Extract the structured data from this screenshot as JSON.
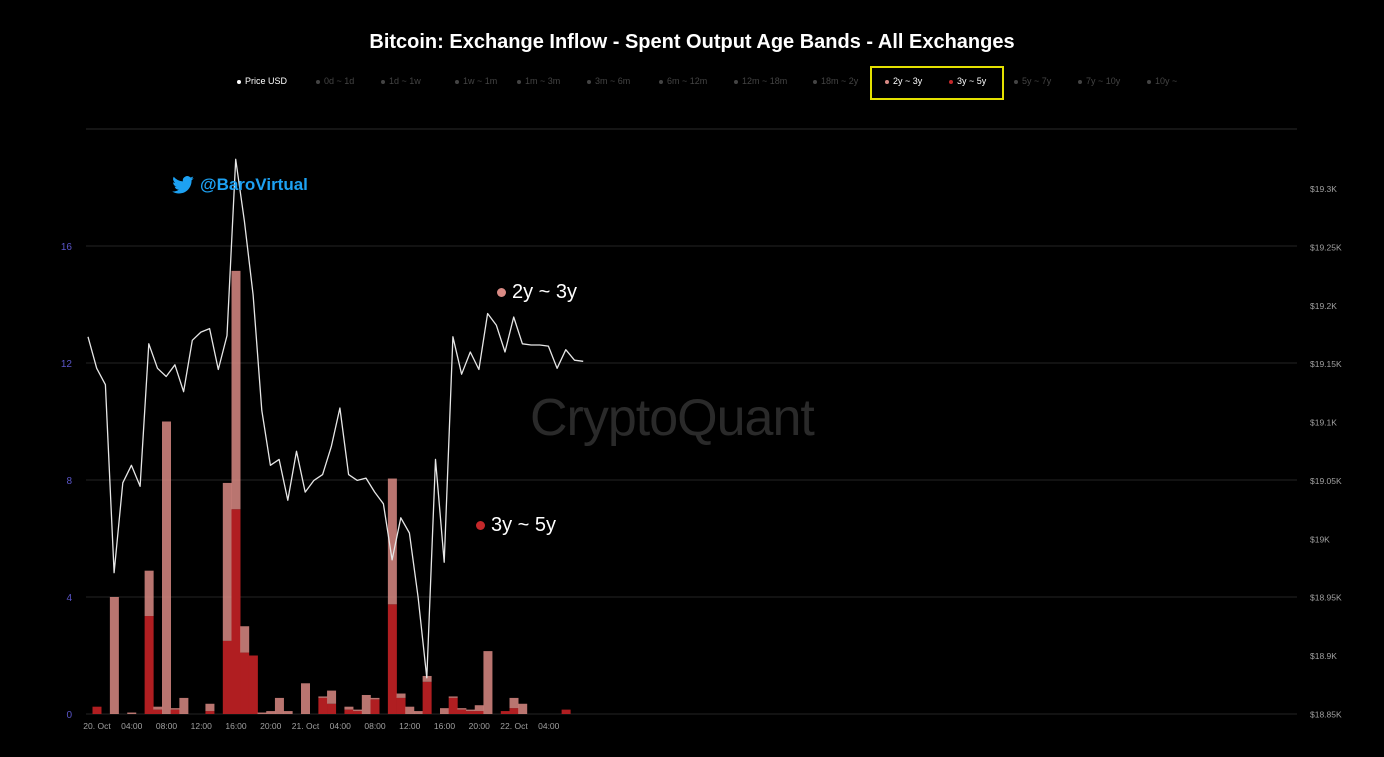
{
  "title": "Bitcoin: Exchange Inflow - Spent Output Age Bands - All Exchanges",
  "watermark": "CryptoQuant",
  "twitter_handle": "@BaroVirtual",
  "annotations": {
    "band_2y_3y": "2y ~ 3y",
    "band_3y_5y": "3y ~ 5y"
  },
  "legend": [
    {
      "label": "Price USD",
      "active": true,
      "color": "#ffffff"
    },
    {
      "label": "0d ~ 1d",
      "active": false,
      "color": "#444444"
    },
    {
      "label": "1d ~ 1w",
      "active": false,
      "color": "#444444"
    },
    {
      "label": "1w ~ 1m",
      "active": false,
      "color": "#444444"
    },
    {
      "label": "1m ~ 3m",
      "active": false,
      "color": "#444444"
    },
    {
      "label": "3m ~ 6m",
      "active": false,
      "color": "#444444"
    },
    {
      "label": "6m ~ 12m",
      "active": false,
      "color": "#444444"
    },
    {
      "label": "12m ~ 18m",
      "active": false,
      "color": "#444444"
    },
    {
      "label": "18m ~ 2y",
      "active": false,
      "color": "#444444"
    },
    {
      "label": "2y ~ 3y",
      "active": true,
      "color": "#d98a84"
    },
    {
      "label": "3y ~ 5y",
      "active": true,
      "color": "#c4282a"
    },
    {
      "label": "5y ~ 7y",
      "active": false,
      "color": "#444444"
    },
    {
      "label": "7y ~ 10y",
      "active": false,
      "color": "#444444"
    },
    {
      "label": "10y ~",
      "active": false,
      "color": "#444444"
    }
  ],
  "colors": {
    "band_2y_3y": "#d98a84",
    "band_3y_5y": "#b01e21",
    "price": "#e6e6e6",
    "grid": "#232323",
    "left_axis": "#5a55c8",
    "right_axis": "#a0a0a0",
    "highlight": "#e4e100",
    "twitter": "#1da1f2"
  },
  "chart_data": {
    "type": "bar",
    "stacked": true,
    "x_tick_labels": [
      "20. Oct",
      "04:00",
      "08:00",
      "12:00",
      "16:00",
      "20:00",
      "21. Oct",
      "04:00",
      "08:00",
      "12:00",
      "16:00",
      "20:00",
      "22. Oct",
      "04:00"
    ],
    "left_axis": {
      "ticks": [
        "0",
        "4",
        "8",
        "12",
        "16"
      ],
      "range": [
        0,
        19
      ]
    },
    "right_axis": {
      "ticks": [
        "$18.85K",
        "$18.9K",
        "$18.95K",
        "$19K",
        "$19.05K",
        "$19.1K",
        "$19.15K",
        "$19.2K",
        "$19.25K",
        "$19.3K"
      ],
      "range": [
        18850,
        19326
      ]
    },
    "hours": 58,
    "bars": [
      {
        "h": 0,
        "b3y5y": 0.25,
        "b2y3y": 0
      },
      {
        "h": 2,
        "b3y5y": 0,
        "b2y3y": 4.0
      },
      {
        "h": 4,
        "b3y5y": 0,
        "b2y3y": 0.05
      },
      {
        "h": 6,
        "b3y5y": 3.35,
        "b2y3y": 1.55
      },
      {
        "h": 7,
        "b3y5y": 0.15,
        "b2y3y": 0.1
      },
      {
        "h": 8,
        "b3y5y": 0,
        "b2y3y": 10.0
      },
      {
        "h": 9,
        "b3y5y": 0.15,
        "b2y3y": 0.05
      },
      {
        "h": 10,
        "b3y5y": 0,
        "b2y3y": 0.55
      },
      {
        "h": 13,
        "b3y5y": 0.1,
        "b2y3y": 0.25
      },
      {
        "h": 15,
        "b3y5y": 2.5,
        "b2y3y": 5.4
      },
      {
        "h": 16,
        "b3y5y": 7.0,
        "b2y3y": 8.15
      },
      {
        "h": 17,
        "b3y5y": 2.1,
        "b2y3y": 0.9
      },
      {
        "h": 18,
        "b3y5y": 2.0,
        "b2y3y": 0
      },
      {
        "h": 19,
        "b3y5y": 0,
        "b2y3y": 0.05
      },
      {
        "h": 20,
        "b3y5y": 0,
        "b2y3y": 0.1
      },
      {
        "h": 21,
        "b3y5y": 0,
        "b2y3y": 0.55
      },
      {
        "h": 22,
        "b3y5y": 0,
        "b2y3y": 0.1
      },
      {
        "h": 24,
        "b3y5y": 0,
        "b2y3y": 1.05
      },
      {
        "h": 26,
        "b3y5y": 0.55,
        "b2y3y": 0.05
      },
      {
        "h": 27,
        "b3y5y": 0.35,
        "b2y3y": 0.45
      },
      {
        "h": 29,
        "b3y5y": 0.15,
        "b2y3y": 0.1
      },
      {
        "h": 30,
        "b3y5y": 0.1,
        "b2y3y": 0.05
      },
      {
        "h": 31,
        "b3y5y": 0,
        "b2y3y": 0.65
      },
      {
        "h": 32,
        "b3y5y": 0.5,
        "b2y3y": 0.05
      },
      {
        "h": 34,
        "b3y5y": 3.75,
        "b2y3y": 4.3
      },
      {
        "h": 35,
        "b3y5y": 0.55,
        "b2y3y": 0.15
      },
      {
        "h": 36,
        "b3y5y": 0,
        "b2y3y": 0.25
      },
      {
        "h": 37,
        "b3y5y": 0,
        "b2y3y": 0.1
      },
      {
        "h": 38,
        "b3y5y": 1.1,
        "b2y3y": 0.2
      },
      {
        "h": 40,
        "b3y5y": 0,
        "b2y3y": 0.2
      },
      {
        "h": 41,
        "b3y5y": 0.55,
        "b2y3y": 0.05
      },
      {
        "h": 42,
        "b3y5y": 0.15,
        "b2y3y": 0.05
      },
      {
        "h": 43,
        "b3y5y": 0.1,
        "b2y3y": 0.05
      },
      {
        "h": 44,
        "b3y5y": 0.1,
        "b2y3y": 0.2
      },
      {
        "h": 45,
        "b3y5y": 0,
        "b2y3y": 2.15
      },
      {
        "h": 47,
        "b3y5y": 0.1,
        "b2y3y": 0
      },
      {
        "h": 48,
        "b3y5y": 0.2,
        "b2y3y": 0.35
      },
      {
        "h": 49,
        "b3y5y": 0,
        "b2y3y": 0.35
      },
      {
        "h": 54,
        "b3y5y": 0.15,
        "b2y3y": 0
      }
    ],
    "price": [
      19173,
      19146,
      19132,
      18971,
      19048,
      19063,
      19045,
      19167,
      19146,
      19139,
      19149,
      19126,
      19170,
      19177,
      19180,
      19145,
      19174,
      19325,
      19272,
      19209,
      19110,
      19063,
      19068,
      19033,
      19075,
      19040,
      19050,
      19055,
      19079,
      19112,
      19055,
      19050,
      19052,
      19040,
      19030,
      18982,
      19018,
      19005,
      18950,
      18881,
      19068,
      18980,
      19173,
      19141,
      19160,
      19145,
      19193,
      19183,
      19160,
      19190,
      19167,
      19166,
      19166,
      19165,
      19146,
      19162,
      19153,
      19152
    ]
  }
}
